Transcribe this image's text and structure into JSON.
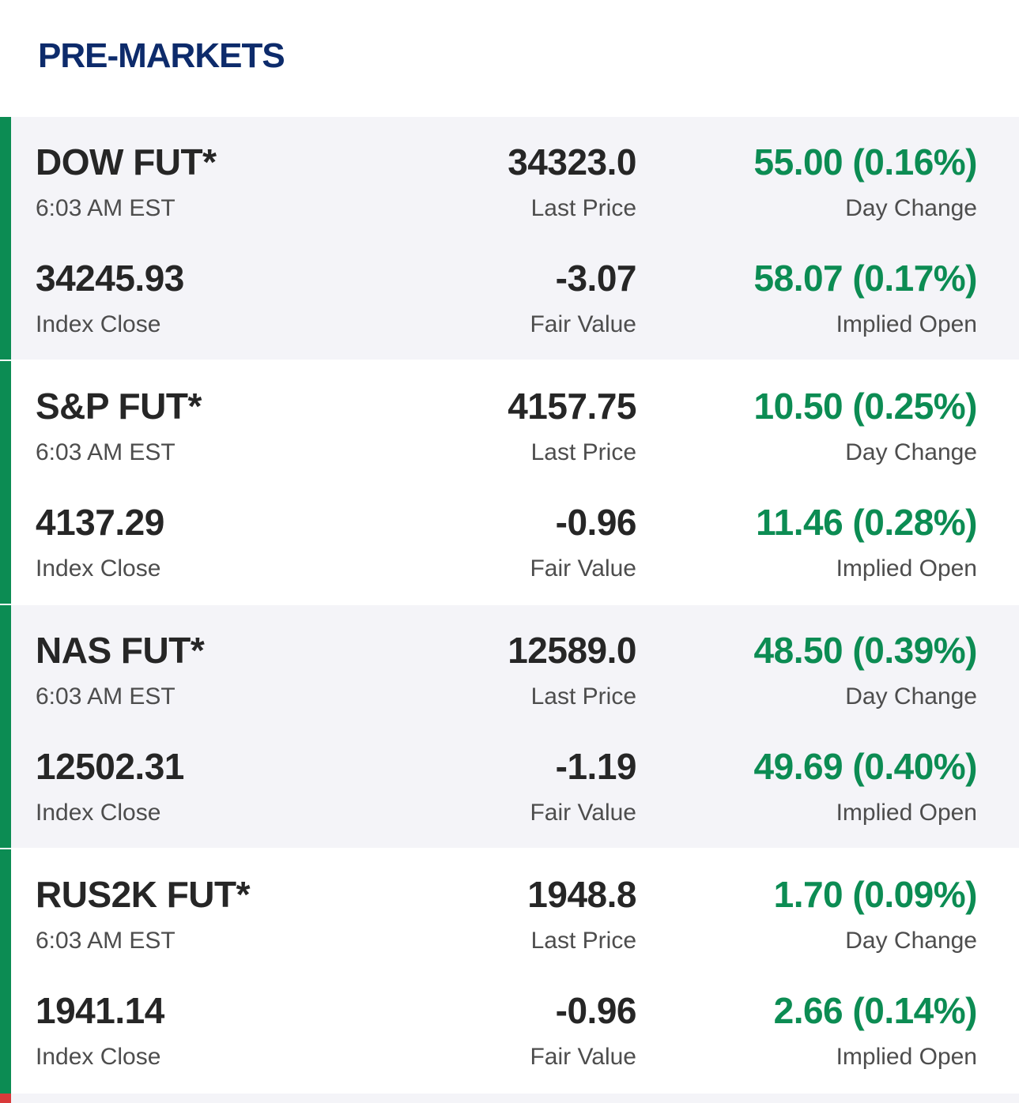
{
  "header": {
    "title": "PRE-MARKETS"
  },
  "colors": {
    "title": "#0d2b6b",
    "positive": "#0c8c53",
    "negative_bar": "#d93a3a",
    "row_shade": "#f4f4f8",
    "text_primary": "#262626",
    "text_secondary": "#4d4d4d"
  },
  "markets": [
    {
      "name": "DOW FUT*",
      "time": "6:03 AM EST",
      "last_price": "34323.0",
      "last_price_label": "Last Price",
      "day_change": "55.00 (0.16%)",
      "day_change_label": "Day Change",
      "index_close": "34245.93",
      "index_close_label": "Index Close",
      "fair_value": "-3.07",
      "fair_value_label": "Fair Value",
      "implied_open": "58.07 (0.17%)",
      "implied_open_label": "Implied Open"
    },
    {
      "name": "S&P FUT*",
      "time": "6:03 AM EST",
      "last_price": "4157.75",
      "last_price_label": "Last Price",
      "day_change": "10.50 (0.25%)",
      "day_change_label": "Day Change",
      "index_close": "4137.29",
      "index_close_label": "Index Close",
      "fair_value": "-0.96",
      "fair_value_label": "Fair Value",
      "implied_open": "11.46 (0.28%)",
      "implied_open_label": "Implied Open"
    },
    {
      "name": "NAS FUT*",
      "time": "6:03 AM EST",
      "last_price": "12589.0",
      "last_price_label": "Last Price",
      "day_change": "48.50 (0.39%)",
      "day_change_label": "Day Change",
      "index_close": "12502.31",
      "index_close_label": "Index Close",
      "fair_value": "-1.19",
      "fair_value_label": "Fair Value",
      "implied_open": "49.69 (0.40%)",
      "implied_open_label": "Implied Open"
    },
    {
      "name": "RUS2K FUT*",
      "time": "6:03 AM EST",
      "last_price": "1948.8",
      "last_price_label": "Last Price",
      "day_change": "1.70 (0.09%)",
      "day_change_label": "Day Change",
      "index_close": "1941.14",
      "index_close_label": "Index Close",
      "fair_value": "-0.96",
      "fair_value_label": "Fair Value",
      "implied_open": "2.66 (0.14%)",
      "implied_open_label": "Implied Open"
    }
  ]
}
